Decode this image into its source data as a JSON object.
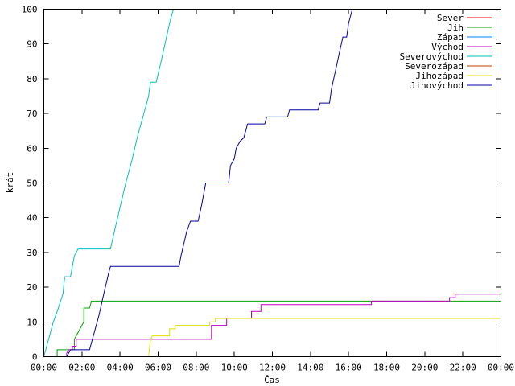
{
  "chart_data": {
    "type": "line",
    "title": "",
    "xlabel": "Čas",
    "ylabel": "krát",
    "xlim": [
      0,
      24
    ],
    "ylim": [
      0,
      100
    ],
    "x_unit": "hours",
    "x_ticks": [
      "00:00",
      "02:00",
      "04:00",
      "06:00",
      "08:00",
      "10:00",
      "12:00",
      "14:00",
      "16:00",
      "18:00",
      "20:00",
      "22:00",
      "00:00"
    ],
    "y_ticks": [
      "0",
      "10",
      "20",
      "30",
      "40",
      "50",
      "60",
      "70",
      "80",
      "90",
      "100"
    ],
    "grid": false,
    "legend_position": "top-right",
    "series": [
      {
        "name": "Sever",
        "color": "#ff0000",
        "points": []
      },
      {
        "name": "Jih",
        "color": "#00a000",
        "points": [
          [
            0.7,
            0
          ],
          [
            0.7,
            2
          ],
          [
            1.6,
            2
          ],
          [
            1.6,
            5
          ],
          [
            2.1,
            10
          ],
          [
            2.1,
            14
          ],
          [
            2.4,
            14
          ],
          [
            2.5,
            16
          ],
          [
            24,
            16
          ]
        ]
      },
      {
        "name": "Západ",
        "color": "#0080ff",
        "points": []
      },
      {
        "name": "Východ",
        "color": "#c000c0",
        "points": [
          [
            1.2,
            0
          ],
          [
            1.2,
            1
          ],
          [
            1.3,
            2
          ],
          [
            1.5,
            2
          ],
          [
            1.5,
            3
          ],
          [
            1.7,
            3
          ],
          [
            1.7,
            5
          ],
          [
            5.3,
            5
          ],
          [
            5.3,
            5
          ],
          [
            8.8,
            5
          ],
          [
            8.8,
            9
          ],
          [
            9.6,
            9
          ],
          [
            9.6,
            11
          ],
          [
            10.9,
            11
          ],
          [
            10.9,
            13
          ],
          [
            11.4,
            13
          ],
          [
            11.4,
            15
          ],
          [
            17.2,
            15
          ],
          [
            17.2,
            16
          ],
          [
            21.3,
            16
          ],
          [
            21.3,
            17
          ],
          [
            21.6,
            17
          ],
          [
            21.6,
            18
          ],
          [
            24,
            18
          ]
        ]
      },
      {
        "name": "Severovýchod",
        "color": "#00c0c0",
        "points": [
          [
            0,
            0
          ],
          [
            0.2,
            4
          ],
          [
            0.5,
            10
          ],
          [
            0.7,
            13
          ],
          [
            1.0,
            18
          ],
          [
            1.1,
            23
          ],
          [
            1.4,
            23
          ],
          [
            1.6,
            29
          ],
          [
            1.7,
            30
          ],
          [
            1.8,
            31
          ],
          [
            3.5,
            31
          ],
          [
            3.7,
            36
          ],
          [
            4.0,
            43
          ],
          [
            4.3,
            50
          ],
          [
            4.6,
            56
          ],
          [
            4.9,
            63
          ],
          [
            5.2,
            69
          ],
          [
            5.5,
            75
          ],
          [
            5.6,
            79
          ],
          [
            5.9,
            79
          ],
          [
            6.2,
            86
          ],
          [
            6.4,
            91
          ],
          [
            6.6,
            96
          ],
          [
            6.8,
            100
          ]
        ]
      },
      {
        "name": "Severozápad",
        "color": "#c04000",
        "points": []
      },
      {
        "name": "Jihozápad",
        "color": "#e0e000",
        "points": [
          [
            5.5,
            0
          ],
          [
            5.6,
            5
          ],
          [
            5.7,
            6
          ],
          [
            6.6,
            6
          ],
          [
            6.6,
            8
          ],
          [
            6.9,
            8
          ],
          [
            6.9,
            9
          ],
          [
            8.7,
            9
          ],
          [
            8.7,
            10
          ],
          [
            9.0,
            10
          ],
          [
            9.0,
            11
          ],
          [
            24,
            11
          ]
        ]
      },
      {
        "name": "Jihovýchod",
        "color": "#0000a0",
        "points": [
          [
            1.2,
            0
          ],
          [
            1.3,
            1
          ],
          [
            1.4,
            2
          ],
          [
            2.4,
            2
          ],
          [
            2.6,
            6
          ],
          [
            2.9,
            12
          ],
          [
            3.1,
            17
          ],
          [
            3.4,
            24
          ],
          [
            3.5,
            26
          ],
          [
            7.1,
            26
          ],
          [
            7.2,
            29
          ],
          [
            7.5,
            36
          ],
          [
            7.7,
            39
          ],
          [
            8.1,
            39
          ],
          [
            8.3,
            44
          ],
          [
            8.5,
            50
          ],
          [
            9.7,
            50
          ],
          [
            9.8,
            55
          ],
          [
            10.0,
            57
          ],
          [
            10.1,
            60
          ],
          [
            10.3,
            62
          ],
          [
            10.5,
            63
          ],
          [
            10.7,
            67
          ],
          [
            11.6,
            67
          ],
          [
            11.7,
            69
          ],
          [
            12.8,
            69
          ],
          [
            12.9,
            71
          ],
          [
            14.4,
            71
          ],
          [
            14.5,
            73
          ],
          [
            15.0,
            73
          ],
          [
            15.1,
            77
          ],
          [
            15.3,
            82
          ],
          [
            15.5,
            87
          ],
          [
            15.7,
            92
          ],
          [
            15.9,
            92
          ],
          [
            16.0,
            96
          ],
          [
            16.2,
            100
          ]
        ]
      }
    ]
  }
}
